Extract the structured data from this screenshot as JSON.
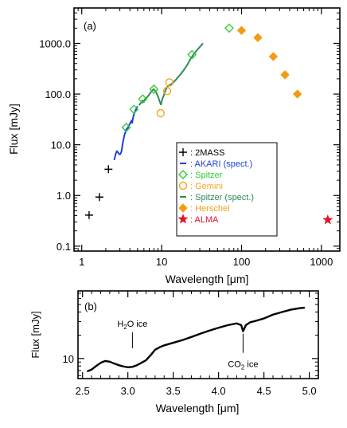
{
  "chart_data": [
    {
      "type": "scatter",
      "panel_label": "(a)",
      "xlabel": "Wavelength [μm]",
      "ylabel": "Flux [mJy]",
      "x_scale": "log",
      "y_scale": "log",
      "xlim": [
        0.8,
        1700
      ],
      "ylim": [
        0.08,
        5000
      ],
      "x_ticks": [
        {
          "v": 1,
          "label": "1"
        },
        {
          "v": 10,
          "label": "10"
        },
        {
          "v": 100,
          "label": "100"
        },
        {
          "v": 1000,
          "label": "1000"
        }
      ],
      "y_ticks": [
        {
          "v": 0.1,
          "label": "0.1"
        },
        {
          "v": 1,
          "label": "1.0"
        },
        {
          "v": 10,
          "label": "10.0"
        },
        {
          "v": 100,
          "label": "100.0"
        },
        {
          "v": 1000,
          "label": "1000.0"
        }
      ],
      "legend_position": "right-middle",
      "series": [
        {
          "name": "2MASS",
          "marker": "plus",
          "color": "#000000",
          "points": [
            [
              1.235,
              0.41
            ],
            [
              1.662,
              0.93
            ],
            [
              2.159,
              3.3
            ]
          ]
        },
        {
          "name": "AKARI (spect.)",
          "marker": "line",
          "color": "#1f3fd8",
          "points": [
            [
              2.55,
              5.0
            ],
            [
              2.65,
              6.5
            ],
            [
              2.75,
              7.5
            ],
            [
              2.85,
              7.0
            ],
            [
              2.95,
              6.5
            ],
            [
              3.05,
              6.6
            ],
            [
              3.15,
              7.5
            ],
            [
              3.25,
              10.5
            ],
            [
              3.4,
              15
            ],
            [
              3.6,
              20
            ],
            [
              3.8,
              22
            ],
            [
              4.0,
              26
            ],
            [
              4.2,
              30
            ],
            [
              4.27,
              27
            ],
            [
              4.35,
              32
            ],
            [
              4.5,
              40
            ],
            [
              4.7,
              47
            ],
            [
              4.9,
              55
            ],
            [
              5.0,
              57
            ]
          ]
        },
        {
          "name": "Spitzer",
          "marker": "diamond-open",
          "color": "#33cc33",
          "points": [
            [
              3.6,
              22
            ],
            [
              4.5,
              50
            ],
            [
              5.8,
              80
            ],
            [
              8.0,
              125
            ],
            [
              24,
              600
            ],
            [
              70,
              2000
            ]
          ]
        },
        {
          "name": "Gemini",
          "marker": "circle-open",
          "color": "#f5a623",
          "points": [
            [
              9.7,
              42
            ],
            [
              11.7,
              115
            ],
            [
              12.5,
              170
            ]
          ]
        },
        {
          "name": "Spitzer (spect.)",
          "marker": "line",
          "color": "#2e8b57",
          "points": [
            [
              5.2,
              60
            ],
            [
              5.8,
              75
            ],
            [
              6.0,
              70
            ],
            [
              6.2,
              80
            ],
            [
              6.5,
              85
            ],
            [
              6.9,
              95
            ],
            [
              7.5,
              115
            ],
            [
              8.0,
              125
            ],
            [
              8.5,
              110
            ],
            [
              9.0,
              90
            ],
            [
              9.5,
              70
            ],
            [
              9.8,
              62
            ],
            [
              10.2,
              80
            ],
            [
              10.8,
              100
            ],
            [
              11.2,
              120
            ],
            [
              11.8,
              140
            ],
            [
              12.5,
              150
            ],
            [
              13.5,
              160
            ],
            [
              15,
              190
            ],
            [
              17,
              240
            ],
            [
              19,
              300
            ],
            [
              21,
              380
            ],
            [
              23,
              500
            ],
            [
              25,
              600
            ],
            [
              28,
              750
            ],
            [
              31,
              900
            ],
            [
              33,
              1000
            ]
          ]
        },
        {
          "name": "Herschel",
          "marker": "diamond-filled",
          "color": "#f39c12",
          "points": [
            [
              100,
              1800
            ],
            [
              160,
              1300
            ],
            [
              250,
              550
            ],
            [
              350,
              240
            ],
            [
              500,
              100
            ]
          ]
        },
        {
          "name": "ALMA",
          "marker": "star",
          "color": "#e8132b",
          "points": [
            [
              1200,
              0.33
            ]
          ]
        }
      ]
    },
    {
      "type": "line",
      "panel_label": "(b)",
      "xlabel": "Wavelength [μm]",
      "ylabel": "Flux [mJy]",
      "x_scale": "linear",
      "y_scale": "log",
      "xlim": [
        2.45,
        5.1
      ],
      "ylim": [
        5.5,
        75
      ],
      "x_ticks": [
        {
          "v": 2.5,
          "label": "2.5"
        },
        {
          "v": 3.0,
          "label": "3.0"
        },
        {
          "v": 3.5,
          "label": "3.5"
        },
        {
          "v": 4.0,
          "label": "4.0"
        },
        {
          "v": 4.5,
          "label": "4.5"
        },
        {
          "v": 5.0,
          "label": "5.0"
        }
      ],
      "y_ticks": [
        {
          "v": 10,
          "label": "10"
        }
      ],
      "annotations": [
        {
          "text": "H2O ice",
          "x": 3.05,
          "flux": 11.5
        },
        {
          "text": "CO2 ice",
          "x": 4.27,
          "flux": 8.5
        }
      ],
      "series": [
        {
          "name": "",
          "color": "#000000",
          "points": [
            [
              2.55,
              6.8
            ],
            [
              2.6,
              7.2
            ],
            [
              2.65,
              8.0
            ],
            [
              2.7,
              8.8
            ],
            [
              2.75,
              9.3
            ],
            [
              2.8,
              9.1
            ],
            [
              2.85,
              8.6
            ],
            [
              2.9,
              8.2
            ],
            [
              2.95,
              7.9
            ],
            [
              3.0,
              7.7
            ],
            [
              3.05,
              7.8
            ],
            [
              3.1,
              8.2
            ],
            [
              3.15,
              8.8
            ],
            [
              3.2,
              9.5
            ],
            [
              3.25,
              11.0
            ],
            [
              3.3,
              13.0
            ],
            [
              3.35,
              14.0
            ],
            [
              3.4,
              14.8
            ],
            [
              3.5,
              16.0
            ],
            [
              3.6,
              17.3
            ],
            [
              3.7,
              19.0
            ],
            [
              3.8,
              21.0
            ],
            [
              3.9,
              23.0
            ],
            [
              4.0,
              25.0
            ],
            [
              4.1,
              27.0
            ],
            [
              4.2,
              28.5
            ],
            [
              4.25,
              27.0
            ],
            [
              4.27,
              22.5
            ],
            [
              4.3,
              27.0
            ],
            [
              4.35,
              29.5
            ],
            [
              4.4,
              30.5
            ],
            [
              4.5,
              33.0
            ],
            [
              4.6,
              37.0
            ],
            [
              4.7,
              40.0
            ],
            [
              4.8,
              43.0
            ],
            [
              4.9,
              45.0
            ],
            [
              4.95,
              45.5
            ]
          ]
        }
      ]
    }
  ]
}
